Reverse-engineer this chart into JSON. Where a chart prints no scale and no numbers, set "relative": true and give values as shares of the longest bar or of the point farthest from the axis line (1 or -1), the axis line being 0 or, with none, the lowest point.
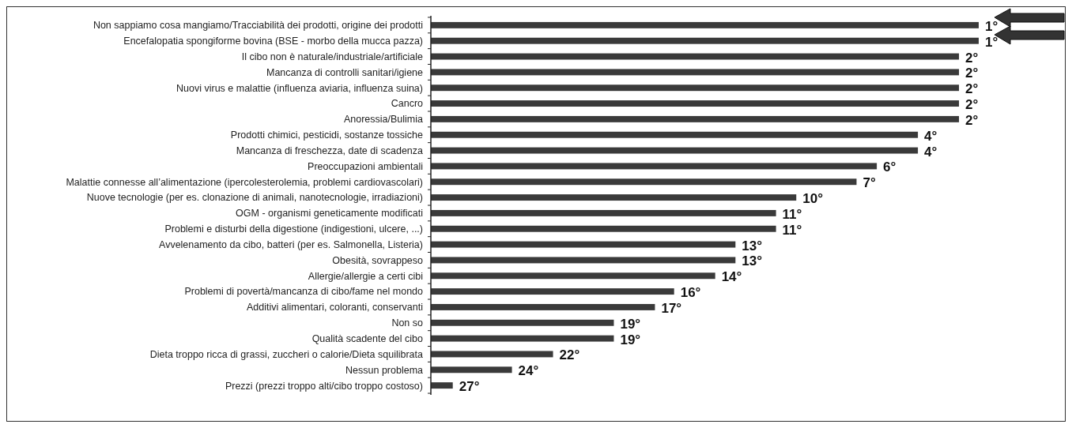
{
  "chart_data": {
    "type": "bar",
    "orientation": "horizontal",
    "relative": true,
    "color": "#3a3a3a",
    "categories": [
      "Non sappiamo cosa mangiamo/Tracciabilità dei prodotti, origine dei prodotti",
      "Encefalopatia spongiforme bovina (BSE - morbo della mucca pazza)",
      "Il cibo non è naturale/industriale/artificiale",
      "Mancanza di controlli sanitari/igiene",
      "Nuovi virus e malattie (influenza aviaria, influenza suina)",
      "Cancro",
      "Anoressia/Bulimia",
      "Prodotti chimici, pesticidi, sostanze tossiche",
      "Mancanza di freschezza, date di scadenza",
      "Preoccupazioni ambientali",
      "Malattie connesse all’alimentazione (ipercolesterolemia, problemi cardiovascolari)",
      "Nuove tecnologie (per es. clonazione di animali, nanotecnologie, irradiazioni)",
      "OGM - organismi geneticamente modificati",
      "Problemi e disturbi della digestione (indigestioni, ulcere, ...)",
      "Avvelenamento da cibo, batteri (per es. Salmonella, Listeria)",
      "Obesità, sovrappeso",
      "Allergie/allergie a certi cibi",
      "Problemi di povertà/mancanza di cibo/fame nel mondo",
      "Additivi alimentari, coloranti, conservanti",
      "Non so",
      "Qualità scadente del cibo",
      "Dieta troppo ricca di grassi, zuccheri o calorie/Dieta squilibrata",
      "Nessun problema",
      "Prezzi (prezzi troppo alti/cibo troppo costoso)"
    ],
    "values": [
      1,
      1,
      0.964,
      0.964,
      0.964,
      0.964,
      0.964,
      0.889,
      0.889,
      0.814,
      0.777,
      0.667,
      0.63,
      0.63,
      0.556,
      0.556,
      0.519,
      0.444,
      0.409,
      0.334,
      0.334,
      0.223,
      0.148,
      0.04
    ],
    "annotations": [
      "1°",
      "1°",
      "2°",
      "2°",
      "2°",
      "2°",
      "2°",
      "4°",
      "4°",
      "6°",
      "7°",
      "10°",
      "11°",
      "11°",
      "13°",
      "13°",
      "14°",
      "16°",
      "17°",
      "19°",
      "19°",
      "22°",
      "24°",
      "27°"
    ]
  }
}
